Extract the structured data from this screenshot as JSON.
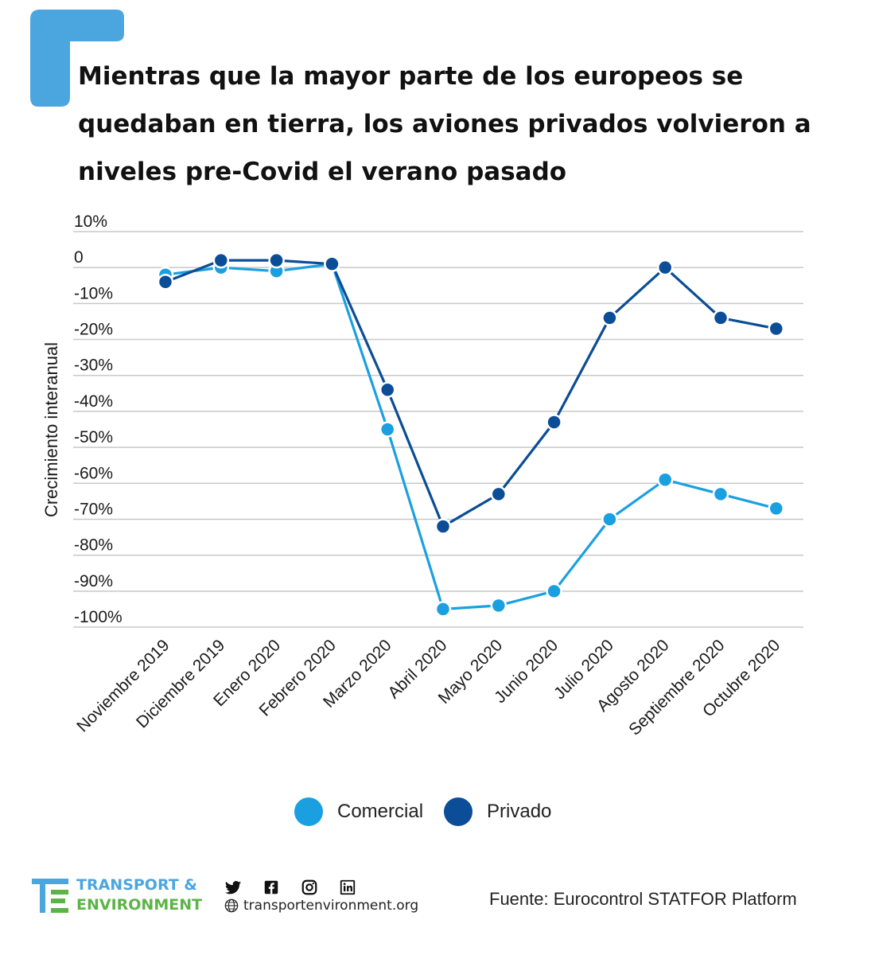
{
  "title": "Mientras que la mayor parte de los europeos se quedaban en tierra, los aviones privados volvieron a niveles pre-Covid el verano pasado",
  "chart_data": {
    "type": "line",
    "title": "Mientras que la mayor parte de los europeos se quedaban en tierra, los aviones privados volvieron a niveles pre-Covid el verano pasado",
    "xlabel": "",
    "ylabel": "Crecimiento interanual",
    "ylim": [
      -100,
      10
    ],
    "yticks": [
      10,
      0,
      -10,
      -20,
      -30,
      -40,
      -50,
      -60,
      -70,
      -80,
      -90,
      -100
    ],
    "ytick_labels": [
      "10%",
      "0",
      "-10%",
      "-20%",
      "-30%",
      "-40%",
      "-50%",
      "-60%",
      "-70%",
      "-80%",
      "-90%",
      "-100%"
    ],
    "grid": true,
    "categories": [
      "Noviembre 2019",
      "Diciembre 2019",
      "Enero 2020",
      "Febrero 2020",
      "Marzo 2020",
      "Abril 2020",
      "Mayo 2020",
      "Junio 2020",
      "Julio 2020",
      "Agosto 2020",
      "Septiembre 2020",
      "Octubre 2020"
    ],
    "series": [
      {
        "name": "Comercial",
        "color": "#1aa0e0",
        "values": [
          -2,
          0,
          -1,
          1,
          -45,
          -95,
          -94,
          -90,
          -70,
          -59,
          -63,
          -67
        ]
      },
      {
        "name": "Privado",
        "color": "#0b4d96",
        "values": [
          -4,
          2,
          2,
          1,
          -34,
          -72,
          -63,
          -43,
          -14,
          0,
          -14,
          -17
        ]
      }
    ],
    "legend_position": "bottom"
  },
  "legend": {
    "items": [
      {
        "label": "Comercial",
        "color": "#1aa0e0"
      },
      {
        "label": "Privado",
        "color": "#0b4d96"
      }
    ]
  },
  "footer": {
    "logo_line_1": "TRANSPORT &",
    "logo_line_2": "ENVIRONMENT",
    "website": "transportenvironment.org",
    "source": "Fuente: Eurocontrol STATFOR Platform"
  },
  "colors": {
    "brand_blue": "#4ba6e0",
    "brand_green": "#5bb446",
    "grid": "#c8c8c8"
  }
}
